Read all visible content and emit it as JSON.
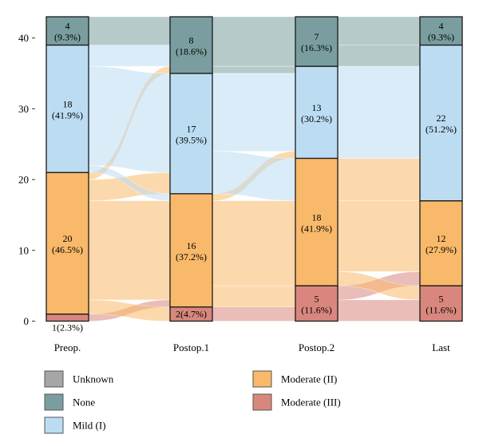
{
  "chart_data": {
    "type": "alluvial",
    "y_axis": {
      "ylim": [
        0,
        43
      ],
      "ticks": [
        0,
        10,
        20,
        30,
        40
      ]
    },
    "stages": [
      "Preop.",
      "Postop.1",
      "Postop.2",
      "Last"
    ],
    "categories": [
      {
        "key": "unknown",
        "name": "Unknown",
        "color": "#a6a6a6"
      },
      {
        "key": "none",
        "name": "None",
        "color": "#7a9e9f"
      },
      {
        "key": "mild",
        "name": "Mild (I)",
        "color": "#bcdcf2"
      },
      {
        "key": "moderate2",
        "name": "Moderate (II)",
        "color": "#f9b96a"
      },
      {
        "key": "moderate3",
        "name": "Moderate (III)",
        "color": "#d9877e"
      }
    ],
    "stacking_order_bottom_to_top": [
      "moderate3",
      "moderate2",
      "mild",
      "none",
      "unknown"
    ],
    "nodes": [
      [
        {
          "category": "moderate3",
          "count": 1,
          "label_count": "1",
          "label_pct": "(2.3%)",
          "label_inline": "1(2.3%)"
        },
        {
          "category": "moderate2",
          "count": 20,
          "label_count": "20",
          "label_pct": "(46.5%)"
        },
        {
          "category": "mild",
          "count": 18,
          "label_count": "18",
          "label_pct": "(41.9%)"
        },
        {
          "category": "none",
          "count": 4,
          "label_count": "4",
          "label_pct": "(9.3%)"
        }
      ],
      [
        {
          "category": "moderate3",
          "count": 2,
          "label_count": "2",
          "label_pct": "(4.7%)",
          "label_inline": "2(4.7%)"
        },
        {
          "category": "moderate2",
          "count": 16,
          "label_count": "16",
          "label_pct": "(37.2%)"
        },
        {
          "category": "mild",
          "count": 17,
          "label_count": "17",
          "label_pct": "(39.5%)"
        },
        {
          "category": "none",
          "count": 8,
          "label_count": "8",
          "label_pct": "(18.6%)"
        }
      ],
      [
        {
          "category": "moderate3",
          "count": 5,
          "label_count": "5",
          "label_pct": "(11.6%)"
        },
        {
          "category": "moderate2",
          "count": 18,
          "label_count": "18",
          "label_pct": "(41.9%)"
        },
        {
          "category": "mild",
          "count": 13,
          "label_count": "13",
          "label_pct": "(30.2%)"
        },
        {
          "category": "none",
          "count": 7,
          "label_count": "7",
          "label_pct": "(16.3%)"
        }
      ],
      [
        {
          "category": "moderate3",
          "count": 5,
          "label_count": "5",
          "label_pct": "(11.6%)"
        },
        {
          "category": "moderate2",
          "count": 12,
          "label_count": "12",
          "label_pct": "(27.9%)"
        },
        {
          "category": "mild",
          "count": 22,
          "label_count": "22",
          "label_pct": "(51.2%)"
        },
        {
          "category": "none",
          "count": 4,
          "label_count": "4",
          "label_pct": "(9.3%)"
        }
      ]
    ],
    "flows": [
      [
        {
          "from": "moderate3",
          "to": "moderate2",
          "value": 1
        },
        {
          "from": "moderate2",
          "to": "moderate3",
          "value": 2
        },
        {
          "from": "moderate2",
          "to": "moderate2",
          "value": 14
        },
        {
          "from": "moderate2",
          "to": "mild",
          "value": 3
        },
        {
          "from": "moderate2",
          "to": "none",
          "value": 1
        },
        {
          "from": "mild",
          "to": "moderate2",
          "value": 1
        },
        {
          "from": "mild",
          "to": "mild",
          "value": 14
        },
        {
          "from": "mild",
          "to": "none",
          "value": 3
        },
        {
          "from": "none",
          "to": "none",
          "value": 4
        }
      ],
      [
        {
          "from": "moderate3",
          "to": "moderate3",
          "value": 2
        },
        {
          "from": "moderate2",
          "to": "moderate3",
          "value": 3
        },
        {
          "from": "moderate2",
          "to": "moderate2",
          "value": 12
        },
        {
          "from": "moderate2",
          "to": "mild",
          "value": 1
        },
        {
          "from": "mild",
          "to": "moderate2",
          "value": 6
        },
        {
          "from": "mild",
          "to": "mild",
          "value": 11
        },
        {
          "from": "none",
          "to": "mild",
          "value": 1
        },
        {
          "from": "none",
          "to": "none",
          "value": 7
        }
      ],
      [
        {
          "from": "moderate3",
          "to": "moderate3",
          "value": 3
        },
        {
          "from": "moderate3",
          "to": "moderate2",
          "value": 2
        },
        {
          "from": "moderate2",
          "to": "moderate3",
          "value": 2
        },
        {
          "from": "moderate2",
          "to": "moderate2",
          "value": 10
        },
        {
          "from": "moderate2",
          "to": "mild",
          "value": 6
        },
        {
          "from": "mild",
          "to": "mild",
          "value": 13
        },
        {
          "from": "none",
          "to": "mild",
          "value": 3
        },
        {
          "from": "none",
          "to": "none",
          "value": 4
        }
      ]
    ],
    "legend": [
      {
        "key": "unknown",
        "label": "Unknown",
        "color": "#a6a6a6"
      },
      {
        "key": "none",
        "label": "None",
        "color": "#7a9e9f"
      },
      {
        "key": "mild",
        "label": "Mild (I)",
        "color": "#bcdcf2"
      },
      {
        "key": "moderate2",
        "label": "Moderate (II)",
        "color": "#f9b96a"
      },
      {
        "key": "moderate3",
        "label": "Moderate (III)",
        "color": "#d9877e"
      }
    ],
    "legend_placement": "bottom",
    "grid": false
  }
}
